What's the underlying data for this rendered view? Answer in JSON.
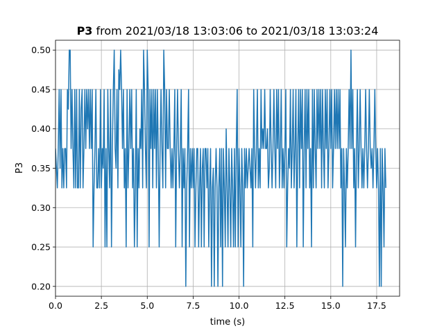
{
  "chart_data": {
    "type": "line",
    "title_bold": "P3",
    "title_rest": " from 2021/03/18 13:03:06 to 2021/03/18 13:03:24",
    "xlabel": "time (s)",
    "ylabel": "P3",
    "xlim": [
      0,
      18.75
    ],
    "ylim": [
      0.1875,
      0.5125
    ],
    "xticks": [
      0,
      2.5,
      5,
      7.5,
      10,
      12.5,
      15,
      17.5
    ],
    "xtick_labels": [
      "0.0",
      "2.5",
      "5.0",
      "7.5",
      "10.0",
      "12.5",
      "15.0",
      "17.5"
    ],
    "yticks": [
      0.2,
      0.25,
      0.3,
      0.35,
      0.4,
      0.45,
      0.5
    ],
    "ytick_labels": [
      "0.20",
      "0.25",
      "0.30",
      "0.35",
      "0.40",
      "0.45",
      "0.50"
    ],
    "grid": true,
    "color": "#1f77b4",
    "series": [
      {
        "x_start": 0,
        "x_step": 0.05,
        "values": [
          0.375,
          0.35,
          0.325,
          0.375,
          0.45,
          0.35,
          0.45,
          0.325,
          0.375,
          0.325,
          0.375,
          0.375,
          0.325,
          0.45,
          0.425,
          0.5,
          0.5,
          0.375,
          0.45,
          0.375,
          0.325,
          0.45,
          0.325,
          0.45,
          0.325,
          0.325,
          0.45,
          0.325,
          0.425,
          0.45,
          0.325,
          0.375,
          0.45,
          0.375,
          0.45,
          0.4,
          0.45,
          0.375,
          0.45,
          0.375,
          0.45,
          0.25,
          0.325,
          0.375,
          0.45,
          0.325,
          0.325,
          0.375,
          0.325,
          0.45,
          0.325,
          0.375,
          0.35,
          0.45,
          0.25,
          0.375,
          0.25,
          0.45,
          0.375,
          0.325,
          0.45,
          0.25,
          0.375,
          0.45,
          0.5,
          0.375,
          0.35,
          0.45,
          0.325,
          0.475,
          0.45,
          0.5,
          0.45,
          0.375,
          0.45,
          0.325,
          0.375,
          0.25,
          0.45,
          0.325,
          0.375,
          0.45,
          0.375,
          0.45,
          0.325,
          0.375,
          0.25,
          0.325,
          0.45,
          0.25,
          0.375,
          0.325,
          0.4,
          0.375,
          0.45,
          0.325,
          0.5,
          0.45,
          0.375,
          0.325,
          0.5,
          0.45,
          0.25,
          0.45,
          0.375,
          0.45,
          0.325,
          0.45,
          0.375,
          0.45,
          0.325,
          0.45,
          0.375,
          0.25,
          0.375,
          0.45,
          0.375,
          0.325,
          0.5,
          0.45,
          0.325,
          0.45,
          0.375,
          0.375,
          0.45,
          0.375,
          0.325,
          0.375,
          0.325,
          0.375,
          0.45,
          0.25,
          0.375,
          0.45,
          0.375,
          0.325,
          0.375,
          0.45,
          0.25,
          0.375,
          0.325,
          0.375,
          0.2,
          0.325,
          0.375,
          0.45,
          0.25,
          0.375,
          0.325,
          0.375,
          0.325,
          0.375,
          0.25,
          0.325,
          0.375,
          0.375,
          0.25,
          0.325,
          0.375,
          0.25,
          0.35,
          0.375,
          0.25,
          0.375,
          0.375,
          0.325,
          0.375,
          0.25,
          0.325,
          0.375,
          0.2,
          0.325,
          0.35,
          0.2,
          0.325,
          0.375,
          0.325,
          0.2,
          0.325,
          0.375,
          0.25,
          0.375,
          0.2,
          0.375,
          0.325,
          0.25,
          0.4,
          0.325,
          0.25,
          0.375,
          0.325,
          0.25,
          0.375,
          0.325,
          0.25,
          0.375,
          0.25,
          0.375,
          0.45,
          0.25,
          0.375,
          0.325,
          0.25,
          0.375,
          0.325,
          0.2,
          0.375,
          0.325,
          0.375,
          0.325,
          0.35,
          0.375,
          0.35,
          0.325,
          0.375,
          0.25,
          0.45,
          0.375,
          0.325,
          0.375,
          0.45,
          0.325,
          0.375,
          0.325,
          0.45,
          0.375,
          0.4,
          0.375,
          0.45,
          0.375,
          0.375,
          0.4,
          0.325,
          0.35,
          0.45,
          0.375,
          0.325,
          0.375,
          0.45,
          0.375,
          0.325,
          0.45,
          0.375,
          0.45,
          0.325,
          0.375,
          0.45,
          0.325,
          0.375,
          0.325,
          0.375,
          0.45,
          0.25,
          0.325,
          0.375,
          0.35,
          0.45,
          0.325,
          0.375,
          0.45,
          0.325,
          0.375,
          0.45,
          0.25,
          0.375,
          0.45,
          0.325,
          0.45,
          0.375,
          0.45,
          0.25,
          0.375,
          0.45,
          0.325,
          0.45,
          0.375,
          0.45,
          0.325,
          0.375,
          0.25,
          0.45,
          0.325,
          0.45,
          0.375,
          0.325,
          0.45,
          0.375,
          0.45,
          0.375,
          0.45,
          0.325,
          0.45,
          0.375,
          0.325,
          0.45,
          0.375,
          0.45,
          0.325,
          0.375,
          0.45,
          0.375,
          0.45,
          0.325,
          0.375,
          0.45,
          0.375,
          0.45,
          0.375,
          0.45,
          0.375,
          0.45,
          0.325,
          0.375,
          0.2,
          0.375,
          0.325,
          0.25,
          0.375,
          0.325,
          0.375,
          0.45,
          0.375,
          0.5,
          0.375,
          0.45,
          0.325,
          0.375,
          0.25,
          0.375,
          0.45,
          0.325,
          0.375,
          0.45,
          0.375,
          0.325,
          0.375,
          0.325,
          0.375,
          0.45,
          0.375,
          0.325,
          0.375,
          0.45,
          0.375,
          0.35,
          0.375,
          0.325,
          0.375,
          0.45,
          0.375,
          0.325,
          0.375,
          0.325,
          0.2,
          0.375,
          0.2,
          0.375,
          0.325,
          0.25,
          0.375,
          0.325
        ]
      }
    ]
  }
}
